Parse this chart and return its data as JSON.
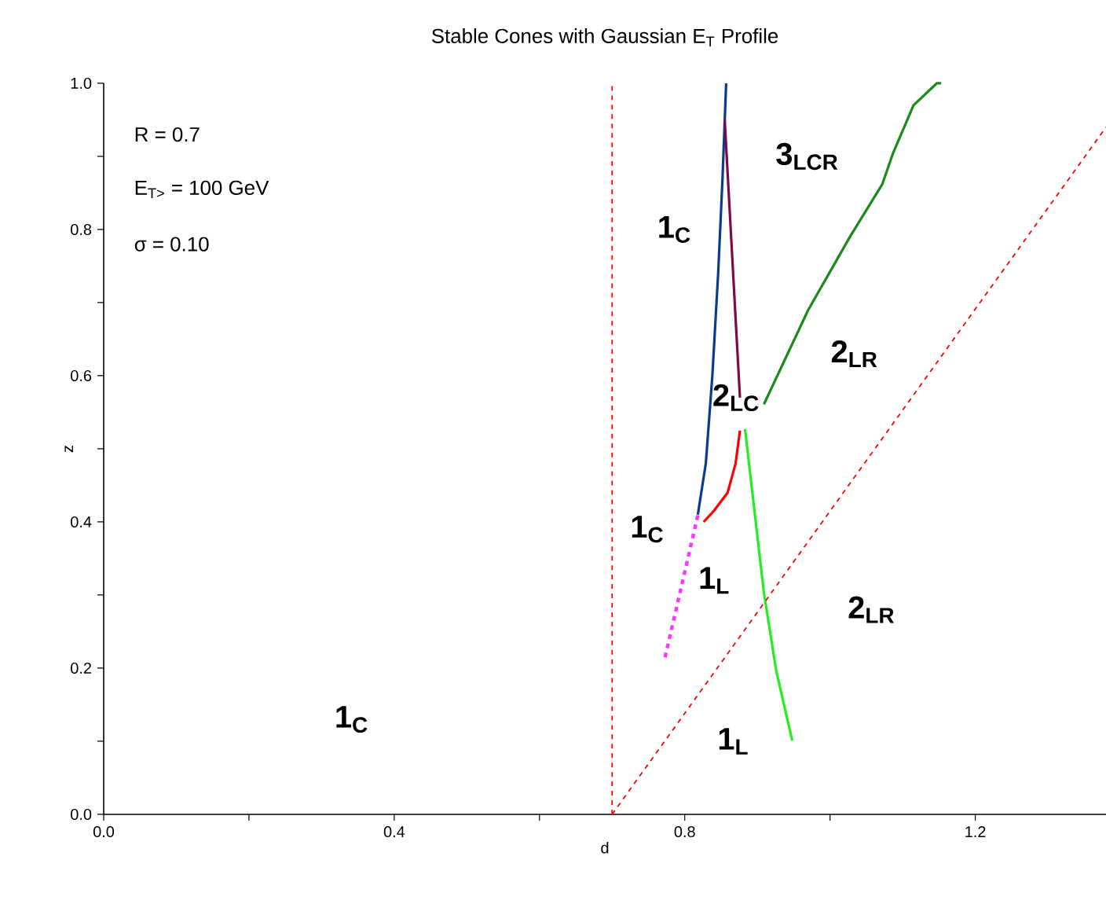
{
  "chart_data": {
    "type": "line",
    "title": "Stable Cones with Gaussian E$_{T}$ Profile",
    "xlabel": "d",
    "ylabel": "z",
    "xlim": [
      0,
      1.38
    ],
    "ylim": [
      0,
      1.0
    ],
    "xticks": [
      {
        "value": 0,
        "label": "0.0"
      },
      {
        "value": 0.2,
        "label": null
      },
      {
        "value": 0.4,
        "label": "0.4"
      },
      {
        "value": 0.6,
        "label": null
      },
      {
        "value": 0.8,
        "label": "0.8"
      },
      {
        "value": 1.0,
        "label": null
      },
      {
        "value": 1.2,
        "label": "1.2"
      }
    ],
    "yticks": [
      {
        "value": 0,
        "label": "0.0"
      },
      {
        "value": 0.1,
        "label": null
      },
      {
        "value": 0.2,
        "label": "0.2"
      },
      {
        "value": 0.3,
        "label": null
      },
      {
        "value": 0.4,
        "label": "0.4"
      },
      {
        "value": 0.5,
        "label": null
      },
      {
        "value": 0.6,
        "label": "0.6"
      },
      {
        "value": 0.7,
        "label": null
      },
      {
        "value": 0.8,
        "label": "0.8"
      },
      {
        "value": 0.9,
        "label": null
      },
      {
        "value": 1.0,
        "label": "1.0"
      }
    ],
    "grid": false,
    "marker": "none",
    "series": [
      {
        "color": "#0a3c8c",
        "line_style": "solid",
        "x": [
          0.818,
          0.829,
          0.838,
          0.846,
          0.852,
          0.857
        ],
        "values": [
          0.41,
          0.48,
          0.6,
          0.74,
          0.87,
          1.0
        ]
      },
      {
        "color": "#7a0a4a",
        "line_style": "solid",
        "x": [
          0.855,
          0.876
        ],
        "values": [
          0.95,
          0.57
        ]
      },
      {
        "color": "#1a8a1a",
        "line_style": "solid",
        "x": [
          0.909,
          0.97,
          1.028,
          1.072,
          1.087,
          1.115,
          1.147,
          1.153
        ],
        "values": [
          0.561,
          0.69,
          0.791,
          0.862,
          0.905,
          0.97,
          1.0,
          1.0
        ]
      },
      {
        "color": "#ff0000",
        "line_style": "solid",
        "x": [
          0.826,
          0.84,
          0.859,
          0.87,
          0.876
        ],
        "values": [
          0.4,
          0.415,
          0.44,
          0.48,
          0.525
        ]
      },
      {
        "color": "#22ee22",
        "line_style": "solid",
        "x": [
          0.883,
          0.909,
          0.926,
          0.948
        ],
        "values": [
          0.527,
          0.303,
          0.196,
          0.101
        ]
      },
      {
        "color": "#ff33ff",
        "line_style": "dashed",
        "x": [
          0.818,
          0.772
        ],
        "values": [
          0.409,
          0.211
        ]
      },
      {
        "color": "#ff0000",
        "line_style": "dashed",
        "x": [
          0.7,
          1.38
        ],
        "values": [
          0,
          0.94
        ]
      }
    ],
    "ref_lines": [
      {
        "axis": "x",
        "value": 0.7,
        "color": "#ff0000",
        "line_style": "dashed"
      }
    ],
    "annotations": [
      "R = 0.7",
      "E$_{T>}$ = 100 GeV",
      "σ = 0.10",
      "1$_{C}$",
      "3$_{LCR}$",
      "2$_{LC}$",
      "2$_{LR}$",
      "1$_{C}$",
      "1$_{L}$",
      "2$_{LR}$",
      "1$_{L}$",
      "1$_{C}$"
    ]
  }
}
